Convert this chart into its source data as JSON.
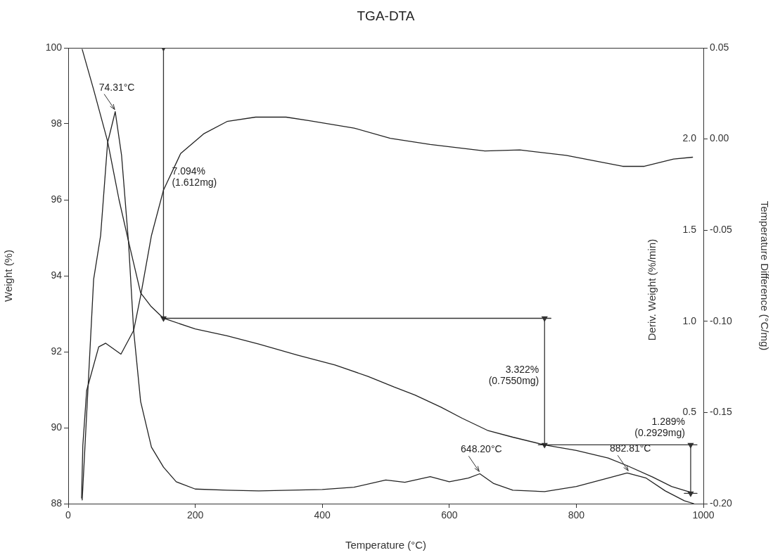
{
  "chart_data": {
    "type": "line",
    "title": "TGA-DTA",
    "xlabel": "Temperature (°C)",
    "ylabel": "Weight (%)",
    "y2label": "Deriv. Weight (%/min)",
    "y3label": "Temperature Difference (°C/mg)",
    "xlim": [
      0,
      1000
    ],
    "xticks": [
      0,
      200,
      400,
      600,
      800,
      1000
    ],
    "ylim": [
      88,
      100
    ],
    "yticks": [
      88,
      90,
      92,
      94,
      96,
      98,
      100
    ],
    "y2lim": [
      0,
      2.5
    ],
    "y2ticks": [
      0.5,
      {
        "value": 1,
        "label": "1.0"
      },
      1.5,
      {
        "value": 2,
        "label": "2.0"
      }
    ],
    "y3lim": [
      -0.2,
      0.05
    ],
    "y3ticks": [
      {
        "value": -0.2,
        "label": "-0.20"
      },
      -0.15,
      {
        "value": -0.1,
        "label": "-0.10"
      },
      -0.05,
      {
        "value": 0,
        "label": "0.00"
      },
      0.05
    ],
    "grid": false,
    "legend": false,
    "series": [
      {
        "axis": "y",
        "color": "#222222",
        "x": [
          22,
          40,
          62,
          80,
          95,
          114,
          130,
          150,
          200,
          250,
          300,
          361,
          420,
          472,
          513,
          546,
          587,
          620,
          660,
          700,
          749,
          800,
          850,
          880,
          920,
          950,
          980
        ],
        "values": [
          99.96,
          98.9,
          97.54,
          96.0,
          94.9,
          93.55,
          93.2,
          92.88,
          92.6,
          92.42,
          92.2,
          91.91,
          91.65,
          91.35,
          91.07,
          90.86,
          90.54,
          90.25,
          89.93,
          89.75,
          89.55,
          89.4,
          89.2,
          89.0,
          88.7,
          88.45,
          88.3
        ]
      },
      {
        "axis": "y2",
        "color": "#222222",
        "x": [
          22,
          40,
          51,
          62,
          74,
          84,
          95,
          103,
          114,
          131,
          150,
          170,
          200,
          250,
          300,
          350,
          400,
          450,
          500,
          530,
          570,
          600,
          630,
          648,
          670,
          700,
          750,
          800,
          850,
          880,
          910,
          940,
          970,
          985
        ],
        "values": [
          0.02,
          1.23,
          1.47,
          1.98,
          2.15,
          1.91,
          1.43,
          0.95,
          0.56,
          0.31,
          0.2,
          0.12,
          0.08,
          0.074,
          0.07,
          0.074,
          0.078,
          0.09,
          0.13,
          0.117,
          0.148,
          0.12,
          0.14,
          0.164,
          0.11,
          0.074,
          0.066,
          0.094,
          0.14,
          0.168,
          0.14,
          0.07,
          0.016,
          0.0
        ]
      },
      {
        "axis": "y3",
        "color": "#222222",
        "x": [
          21,
          23,
          29,
          48,
          59,
          83,
          103,
          114,
          131,
          150,
          177,
          214,
          250,
          295,
          343,
          380,
          450,
          507,
          570,
          656,
          711,
          784,
          873,
          907,
          953,
          983
        ],
        "values": [
          -0.197,
          -0.168,
          -0.138,
          -0.114,
          -0.112,
          -0.118,
          -0.105,
          -0.086,
          -0.053,
          -0.028,
          -0.008,
          0.003,
          0.0096,
          0.012,
          0.012,
          0.01,
          0.006,
          0.0004,
          -0.003,
          -0.0066,
          -0.006,
          -0.009,
          -0.015,
          -0.015,
          -0.011,
          -0.01
        ]
      },
      {
        "axis": "y",
        "color": "#333333",
        "marker": "triangle",
        "x": [
          150,
          150
        ],
        "values": [
          100,
          92.88
        ]
      },
      {
        "axis": "y",
        "color": "#333333",
        "x": [
          150,
          760
        ],
        "values": [
          92.88,
          92.88
        ]
      },
      {
        "axis": "y",
        "color": "#333333",
        "marker": "triangle",
        "x": [
          750,
          750
        ],
        "values": [
          92.88,
          89.55
        ]
      },
      {
        "axis": "y",
        "color": "#333333",
        "x": [
          740,
          990
        ],
        "values": [
          89.55,
          89.55
        ]
      },
      {
        "axis": "y",
        "color": "#333333",
        "marker": "triangle",
        "x": [
          980,
          980
        ],
        "values": [
          89.55,
          88.27
        ]
      },
      {
        "axis": "y",
        "color": "#333333",
        "x": [
          970,
          990
        ],
        "values": [
          88.27,
          88.27
        ]
      }
    ],
    "annotations": [
      {
        "text": "74.31°C",
        "x": 74.31,
        "y": 98.32
      },
      "7.094%\n(1.612mg)",
      "3.322%\n(0.7550mg)",
      "1.289%\n(0.2929mg)",
      {
        "text": "648.20°C",
        "x": 648.2,
        "y": 88.79
      },
      {
        "text": "882.81°C",
        "x": 882.81,
        "y": 88.81
      }
    ]
  }
}
